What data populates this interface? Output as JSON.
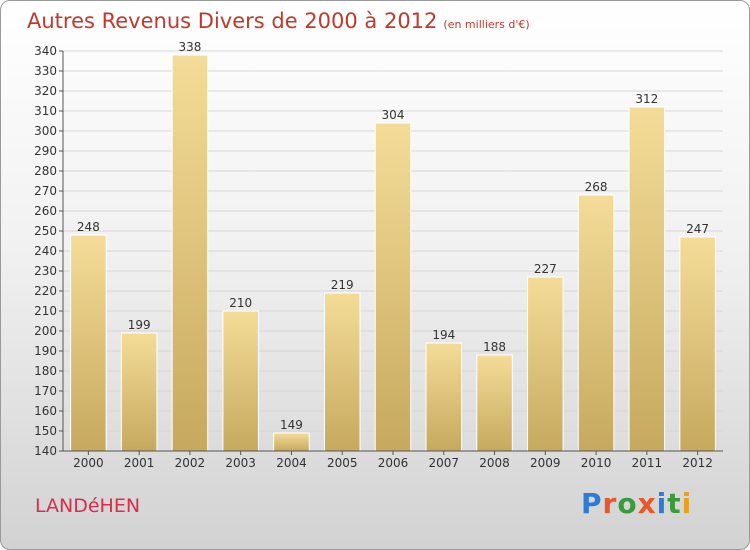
{
  "title": "Autres Revenus Divers de 2000 à 2012",
  "unit_note": "(en milliers d'€)",
  "commune": "LANDéHEN",
  "brand": {
    "text": "Proxiti",
    "colors": [
      "#2e7bd6",
      "#e8572a",
      "#3a9b3a",
      "#e8572a",
      "#2e7bd6",
      "#3a9b3a",
      "#e8a020"
    ]
  },
  "colors": {
    "bar_light": "#f4dc98",
    "bar_dark": "#c6a95e",
    "title": "#c0392b",
    "commune": "#d62f4a"
  },
  "chart_data": {
    "type": "bar",
    "categories": [
      "2000",
      "2001",
      "2002",
      "2003",
      "2004",
      "2005",
      "2006",
      "2007",
      "2008",
      "2009",
      "2010",
      "2011",
      "2012"
    ],
    "values": [
      248,
      199,
      338,
      210,
      149,
      219,
      304,
      194,
      188,
      227,
      268,
      312,
      247
    ],
    "ylim": [
      140,
      340
    ],
    "ytick_step": 10,
    "grid": true
  }
}
